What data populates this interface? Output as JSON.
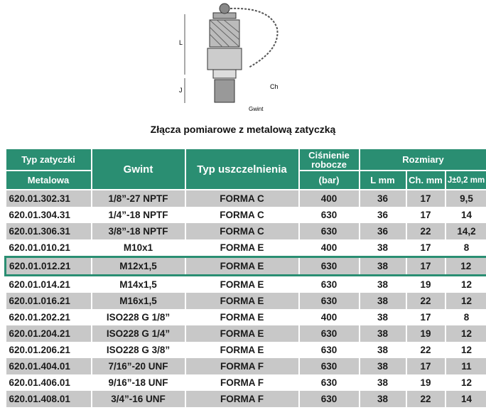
{
  "drawing": {
    "label_L": "L",
    "label_J": "J",
    "label_Ch": "Ch",
    "label_Gwint": "Gwint"
  },
  "title": "Złącza pomiarowe z metalową zatyczką",
  "header": {
    "typ_zatyczki": "Typ zatyczki",
    "metalowa": "Metalowa",
    "gwint": "Gwint",
    "typ_uszczelnienia": "Typ uszczelnienia",
    "cisnienie": "Ciśnienie robocze",
    "bar": "(bar)",
    "rozmiary": "Rozmiary",
    "l_mm": "L mm",
    "ch_mm": "Ch. mm",
    "j": "J±0,2 mm"
  },
  "rows": [
    [
      "620.01.302.31",
      "1/8”-27 NPTF",
      "FORMA C",
      "400",
      "36",
      "17",
      "9,5"
    ],
    [
      "620.01.304.31",
      "1/4”-18 NPTF",
      "FORMA C",
      "630",
      "36",
      "17",
      "14"
    ],
    [
      "620.01.306.31",
      "3/8”-18 NPTF",
      "FORMA C",
      "630",
      "36",
      "22",
      "14,2"
    ],
    [
      "620.01.010.21",
      "M10x1",
      "FORMA E",
      "400",
      "38",
      "17",
      "8"
    ],
    [
      "620.01.012.21",
      "M12x1,5",
      "FORMA E",
      "630",
      "38",
      "17",
      "12"
    ],
    [
      "620.01.014.21",
      "M14x1,5",
      "FORMA E",
      "630",
      "38",
      "19",
      "12"
    ],
    [
      "620.01.016.21",
      "M16x1,5",
      "FORMA E",
      "630",
      "38",
      "22",
      "12"
    ],
    [
      "620.01.202.21",
      "ISO228 G 1/8”",
      "FORMA E",
      "400",
      "38",
      "17",
      "8"
    ],
    [
      "620.01.204.21",
      "ISO228 G 1/4”",
      "FORMA E",
      "630",
      "38",
      "19",
      "12"
    ],
    [
      "620.01.206.21",
      "ISO228 G 3/8”",
      "FORMA E",
      "630",
      "38",
      "22",
      "12"
    ],
    [
      "620.01.404.01",
      "7/16”-20 UNF",
      "FORMA F",
      "630",
      "38",
      "17",
      "11"
    ],
    [
      "620.01.406.01",
      "9/16”-18 UNF",
      "FORMA F",
      "630",
      "38",
      "19",
      "12"
    ],
    [
      "620.01.408.01",
      "3/4”-16 UNF",
      "FORMA F",
      "630",
      "38",
      "22",
      "14"
    ]
  ],
  "highlighted_row": 4,
  "colors": {
    "header": "#2a8e72",
    "stripe": "#c8c8c8"
  }
}
